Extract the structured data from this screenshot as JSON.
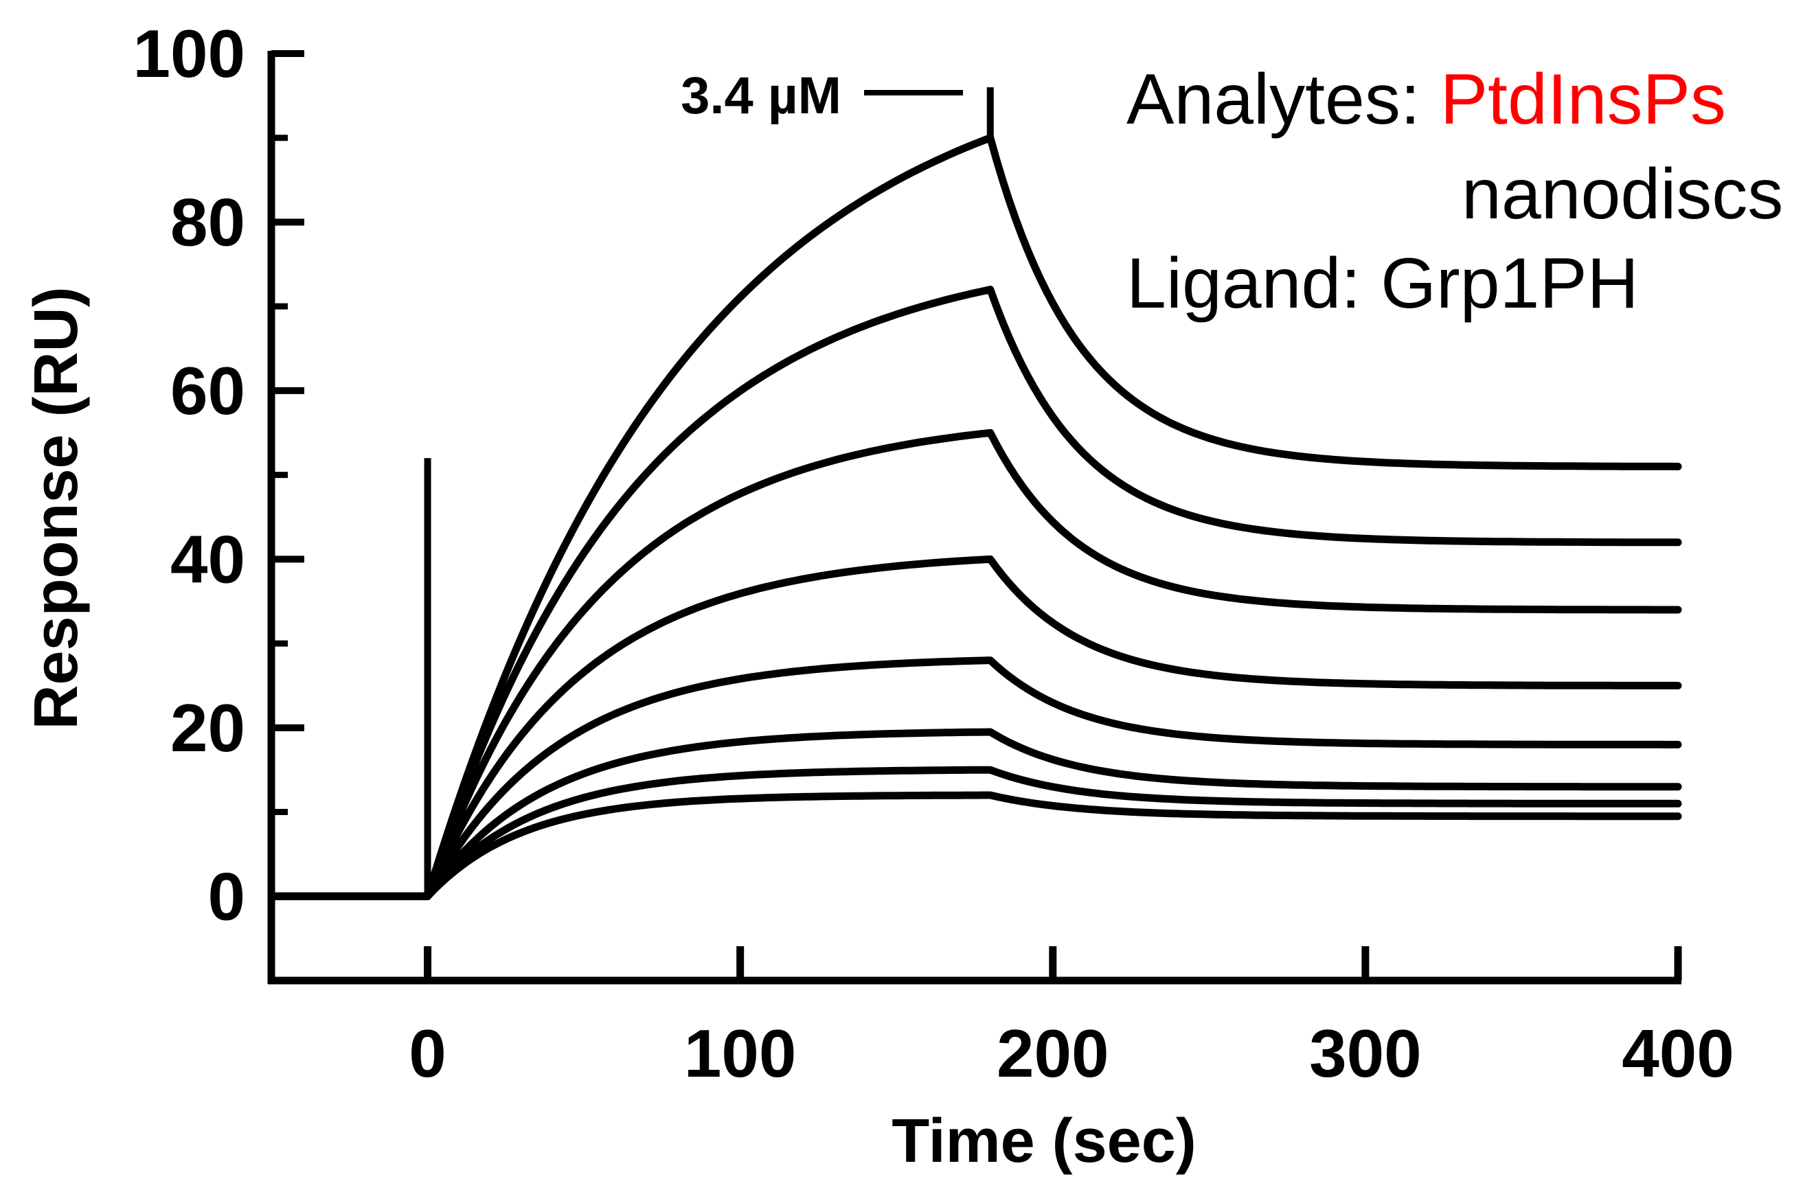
{
  "chart_data": {
    "type": "line",
    "xlabel": "Time (sec)",
    "ylabel": "Response (RU)",
    "xlim": [
      -50,
      400
    ],
    "ylim": [
      -10,
      100
    ],
    "x_ticks": [
      0,
      100,
      200,
      300,
      400
    ],
    "y_ticks": [
      0,
      20,
      40,
      60,
      80,
      100
    ],
    "grid": false,
    "annotation": {
      "text": "3.4 µM",
      "points_to": "top curve"
    },
    "legend_lines": [
      {
        "prefix": "Analytes: ",
        "highlight": "PtdInsPs",
        "highlight_color": "#ff0000"
      },
      {
        "text": "nanodiscs"
      },
      {
        "text": "Ligand: Grp1PH"
      }
    ],
    "injection_time": 0,
    "dissociation_time": 180,
    "series": [
      {
        "values_at_injection_end": 90,
        "values_at_end": 51
      },
      {
        "values_at_injection_end": 72,
        "values_at_end": 42
      },
      {
        "values_at_injection_end": 55,
        "values_at_end": 34
      },
      {
        "values_at_injection_end": 40,
        "values_at_end": 25
      },
      {
        "values_at_injection_end": 28,
        "values_at_end": 18
      },
      {
        "values_at_injection_end": 19.5,
        "values_at_end": 13
      },
      {
        "values_at_injection_end": 15,
        "values_at_end": 11
      },
      {
        "values_at_injection_end": 12,
        "values_at_end": 9.5
      }
    ],
    "line_color": "#000000"
  }
}
